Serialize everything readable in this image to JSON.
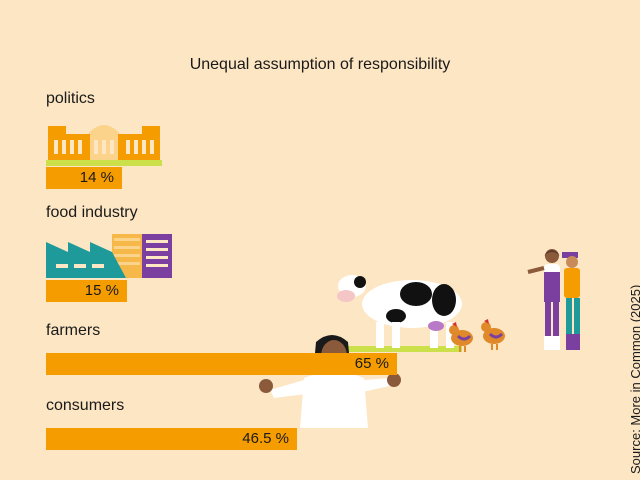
{
  "chart_data": {
    "type": "bar",
    "orientation": "horizontal",
    "title": "Unequal assumption of responsibility",
    "categories": [
      "politics",
      "food industry",
      "farmers",
      "consumers"
    ],
    "values": [
      14,
      15,
      65,
      46.5
    ],
    "value_labels": [
      "14 %",
      "15 %",
      "65 %",
      "46.5 %"
    ],
    "xlim": [
      0,
      100
    ],
    "grid": false,
    "legend": "none",
    "bar_color": "#f59c00"
  },
  "source": "Source: More in Common (2025)",
  "illustrations": [
    "parliament-building-icon",
    "factory-icon",
    "cow-icon",
    "chicken-icon",
    "farmers-icon",
    "consumer-person-icon"
  ],
  "colors": {
    "background": "#fde6c4",
    "accent": "#f59c00",
    "teal": "#1f9a9a",
    "purple": "#7b3fa0"
  }
}
